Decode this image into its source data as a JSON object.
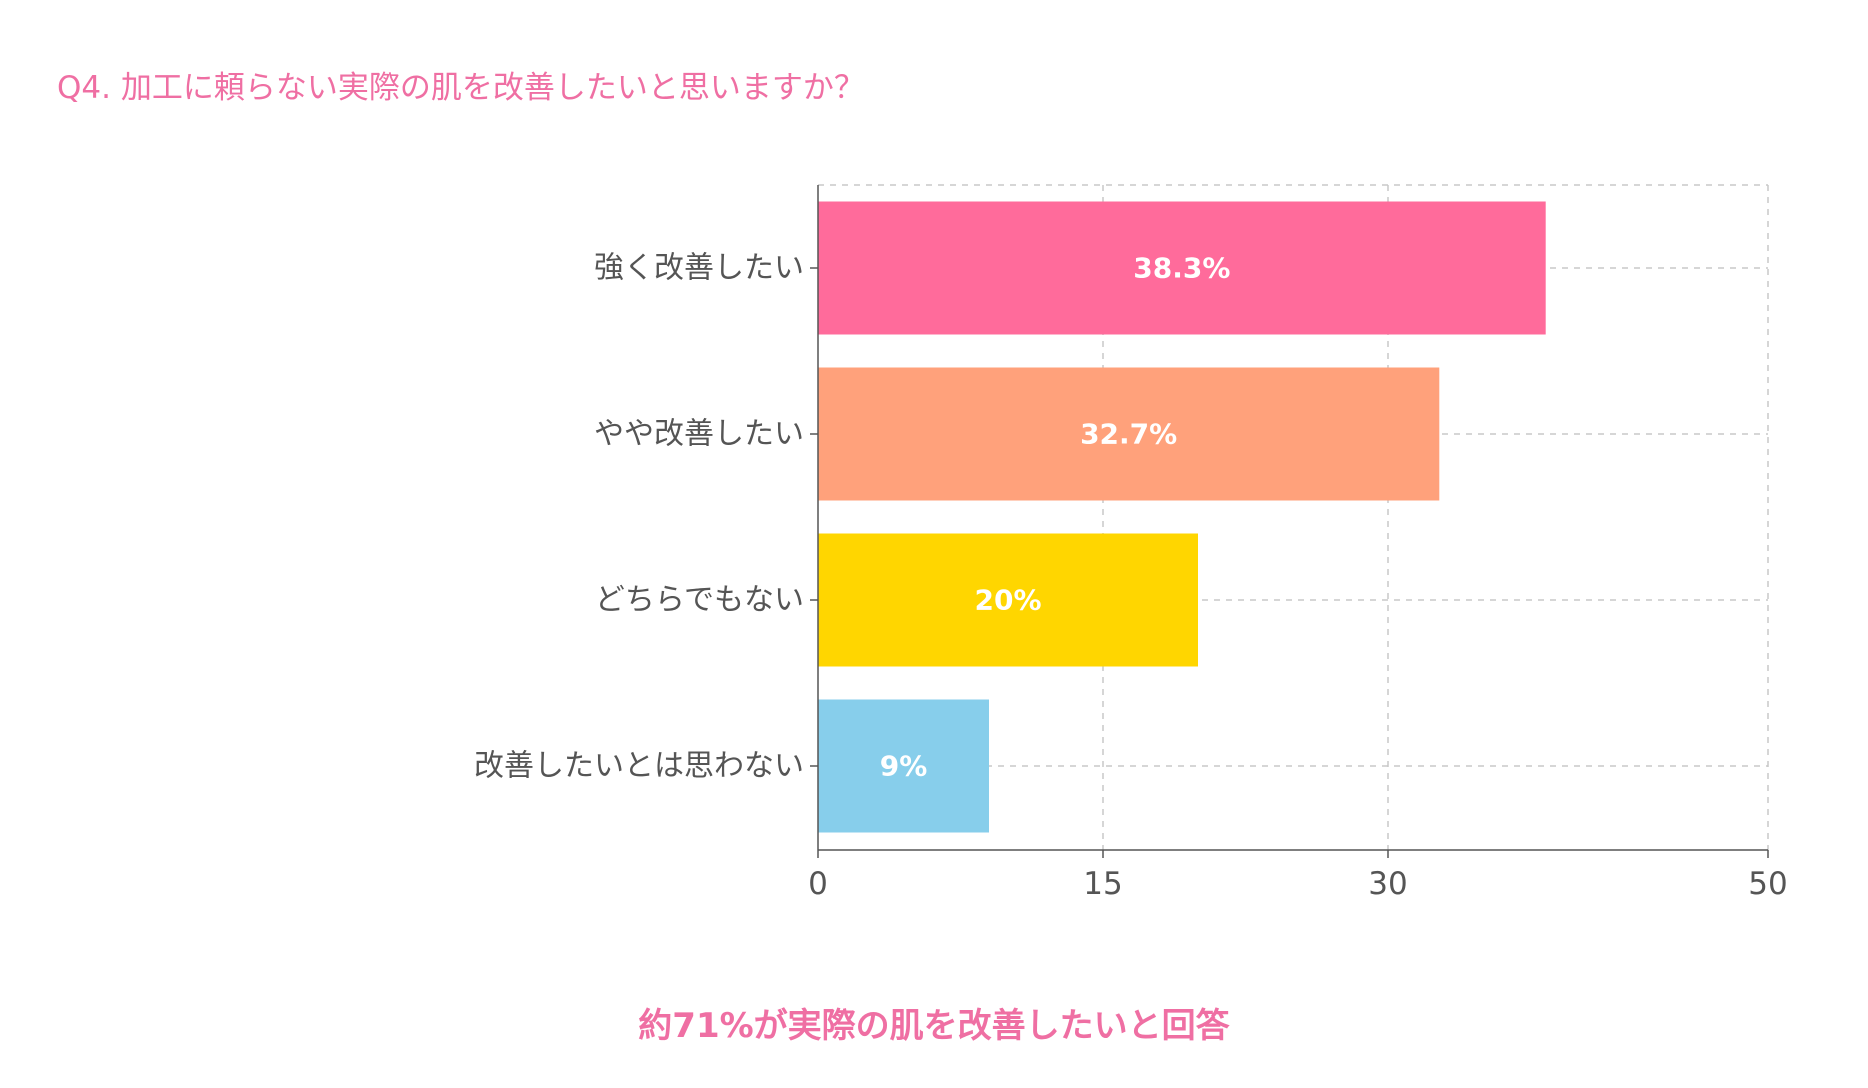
{
  "question": "Q4. 加工に頼らない実際の肌を改善したいと思いますか？",
  "conclusion": "約71%が実際の肌を改善したいと回答",
  "chart_data": {
    "type": "bar",
    "orientation": "horizontal",
    "title": "Q4. 加工に頼らない実際の肌を改善したいと思いますか？",
    "categories": [
      "強く改善したい",
      "やや改善したい",
      "どちらでもない",
      "改善したいとは思わない"
    ],
    "values": [
      38.3,
      32.7,
      20,
      9
    ],
    "value_labels": [
      "38.3%",
      "32.7%",
      "20%",
      "9%"
    ],
    "colors": [
      "#ff6b9b",
      "#ffa17b",
      "#ffd600",
      "#87ceeb"
    ],
    "xlim": [
      0,
      50
    ],
    "xticks": [
      0,
      15,
      30,
      50
    ],
    "xlabel": "",
    "ylabel": "",
    "grid": true,
    "legend": "none"
  }
}
